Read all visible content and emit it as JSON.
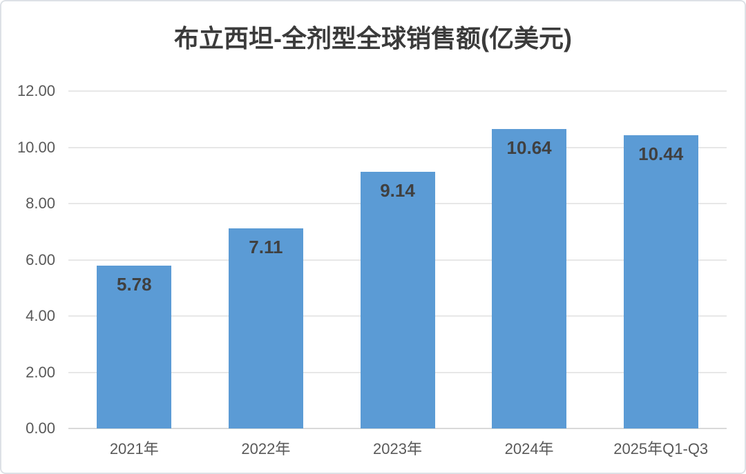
{
  "chart_data": {
    "type": "bar",
    "title": "布立西坦-全剂型全球销售额(亿美元)",
    "categories": [
      "2021年",
      "2022年",
      "2023年",
      "2024年",
      "2025年Q1-Q3"
    ],
    "values": [
      5.78,
      7.11,
      9.14,
      10.64,
      10.44
    ],
    "value_labels": [
      "5.78",
      "7.11",
      "9.14",
      "10.64",
      "10.44"
    ],
    "xlabel": "",
    "ylabel": "",
    "ylim": [
      0,
      12
    ],
    "ytick_interval": 2,
    "ytick_labels": [
      "0.00",
      "2.00",
      "4.00",
      "6.00",
      "8.00",
      "10.00",
      "12.00"
    ],
    "grid": "horizontal",
    "legend": "none",
    "colors": {
      "bar": "#5B9BD5",
      "bar_value_label": "#404040",
      "title": "#3b3b3b",
      "axis_text": "#595959",
      "gridline": "#e7e7e7",
      "baseline": "#d9d9d9",
      "panel_border": "#dde1e6",
      "background": "#ffffff"
    }
  }
}
